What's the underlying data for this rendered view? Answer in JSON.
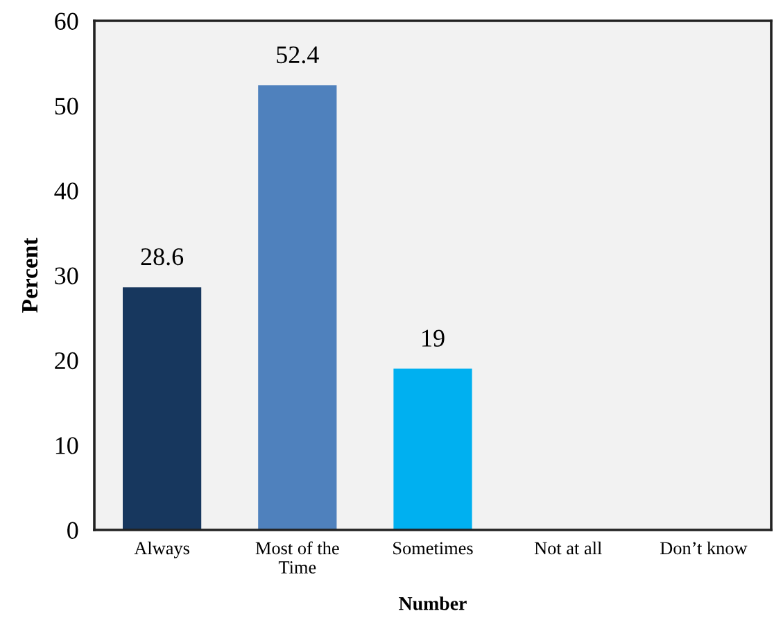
{
  "chart_data": {
    "type": "bar",
    "categories": [
      "Always",
      "Most of the\nTime",
      "Sometimes",
      "Not at all",
      "Don’t know"
    ],
    "values": [
      28.6,
      52.4,
      19,
      null,
      null
    ],
    "colors": [
      "#17375e",
      "#4f81bd",
      "#00b0f0",
      "#4f81bd",
      "#4f81bd"
    ],
    "value_labels": [
      "28.6",
      "52.4",
      "19",
      null,
      null
    ],
    "xlabel": "Number",
    "ylabel": "Percent",
    "ylim": [
      0,
      60
    ],
    "yticks": [
      0,
      10,
      20,
      30,
      40,
      50,
      60
    ],
    "grid": false
  }
}
